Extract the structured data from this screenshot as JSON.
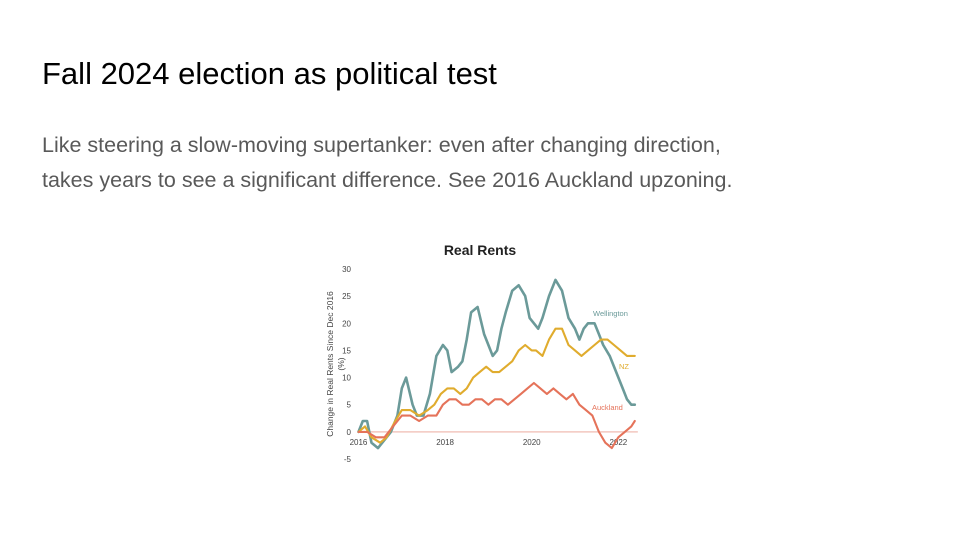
{
  "slide": {
    "title": "Fall 2024 election as political test",
    "body_lines": [
      "Like steering a slow-moving supertanker: even after changing direction,",
      "takes years to see a significant difference. See 2016 Auckland upzoning."
    ]
  },
  "chart_data": {
    "type": "line",
    "title": "Real Rents",
    "xlabel": "",
    "ylabel": "Change in Real Rents Since Dec 2016 (%)",
    "xlim": [
      2015.92,
      2022.5
    ],
    "ylim": [
      -5,
      30
    ],
    "yticks": [
      -5,
      0,
      5,
      10,
      15,
      20,
      25,
      30
    ],
    "xticks": [
      2016,
      2018,
      2020,
      2022
    ],
    "grid": false,
    "legend": "inline labels at right end of each line",
    "colors": {
      "Wellington": "#6b9a99",
      "NZ": "#e0ac2e",
      "Auckland": "#e5735a",
      "zero_line": "#f2c7bf"
    },
    "series": [
      {
        "name": "Wellington",
        "x": [
          2016.0,
          2016.1,
          2016.2,
          2016.3,
          2016.45,
          2016.55,
          2016.75,
          2016.9,
          2017.0,
          2017.1,
          2017.25,
          2017.35,
          2017.5,
          2017.65,
          2017.8,
          2017.95,
          2018.05,
          2018.15,
          2018.3,
          2018.4,
          2018.5,
          2018.6,
          2018.75,
          2018.9,
          2019.0,
          2019.1,
          2019.2,
          2019.3,
          2019.4,
          2019.55,
          2019.7,
          2019.85,
          2019.95,
          2020.05,
          2020.15,
          2020.25,
          2020.4,
          2020.55,
          2020.7,
          2020.85,
          2021.0,
          2021.1,
          2021.2,
          2021.3,
          2021.45,
          2021.55,
          2021.65,
          2021.8,
          2021.95,
          2022.1,
          2022.2,
          2022.3,
          2022.38
        ],
        "values": [
          0,
          2,
          2,
          -2,
          -3,
          -2,
          0,
          3,
          8,
          10,
          5,
          3,
          3,
          7,
          14,
          16,
          15,
          11,
          12,
          13,
          17,
          22,
          23,
          18,
          16,
          14,
          15,
          19,
          22,
          26,
          27,
          25,
          21,
          20,
          19,
          21,
          25,
          28,
          26,
          21,
          19,
          17,
          19,
          20,
          20,
          18,
          16,
          14,
          11,
          8,
          6,
          5,
          5
        ],
        "end_label": "Wellington"
      },
      {
        "name": "NZ",
        "x": [
          2016.0,
          2016.15,
          2016.3,
          2016.5,
          2016.65,
          2016.85,
          2017.0,
          2017.2,
          2017.4,
          2017.6,
          2017.75,
          2017.9,
          2018.05,
          2018.2,
          2018.35,
          2018.5,
          2018.65,
          2018.8,
          2018.95,
          2019.1,
          2019.25,
          2019.4,
          2019.55,
          2019.7,
          2019.85,
          2020.0,
          2020.1,
          2020.25,
          2020.4,
          2020.55,
          2020.7,
          2020.85,
          2021.0,
          2021.15,
          2021.3,
          2021.45,
          2021.6,
          2021.75,
          2021.9,
          2022.05,
          2022.2,
          2022.38
        ],
        "values": [
          0,
          1,
          -1,
          -2,
          -1,
          2,
          4,
          4,
          3,
          4,
          5,
          7,
          8,
          8,
          7,
          8,
          10,
          11,
          12,
          11,
          11,
          12,
          13,
          15,
          16,
          15,
          15,
          14,
          17,
          19,
          19,
          16,
          15,
          14,
          15,
          16,
          17,
          17,
          16,
          15,
          14,
          14
        ],
        "end_label": "NZ"
      },
      {
        "name": "Auckland",
        "x": [
          2016.0,
          2016.2,
          2016.4,
          2016.6,
          2016.8,
          2017.0,
          2017.2,
          2017.4,
          2017.6,
          2017.8,
          2017.95,
          2018.1,
          2018.25,
          2018.4,
          2018.55,
          2018.7,
          2018.85,
          2019.0,
          2019.15,
          2019.3,
          2019.45,
          2019.6,
          2019.75,
          2019.9,
          2020.05,
          2020.2,
          2020.35,
          2020.5,
          2020.65,
          2020.8,
          2020.95,
          2021.1,
          2021.25,
          2021.4,
          2021.55,
          2021.7,
          2021.85,
          2022.0,
          2022.15,
          2022.3,
          2022.38
        ],
        "values": [
          0,
          0,
          -1,
          -1,
          1,
          3,
          3,
          2,
          3,
          3,
          5,
          6,
          6,
          5,
          5,
          6,
          6,
          5,
          6,
          6,
          5,
          6,
          7,
          8,
          9,
          8,
          7,
          8,
          7,
          6,
          7,
          5,
          4,
          3,
          0,
          -2,
          -3,
          -1,
          0,
          1,
          2
        ],
        "end_label": "Auckland"
      }
    ]
  }
}
